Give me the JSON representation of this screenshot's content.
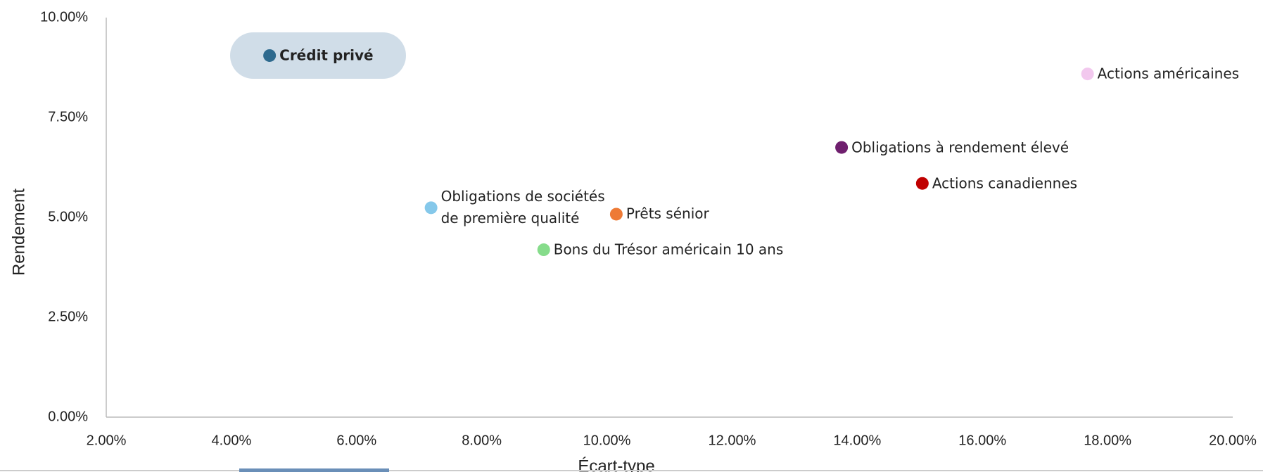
{
  "chart_data": {
    "type": "scatter",
    "x_label": "Écart-type",
    "y_label": "Rendement",
    "xlim": [
      2,
      20
    ],
    "ylim": [
      0,
      10
    ],
    "xticks": [
      {
        "value": 2,
        "label": "2.00%"
      },
      {
        "value": 4,
        "label": "4.00%"
      },
      {
        "value": 6,
        "label": "6.00%"
      },
      {
        "value": 8,
        "label": "8.00%"
      },
      {
        "value": 10,
        "label": "10.00%"
      },
      {
        "value": 12,
        "label": "12.00%"
      },
      {
        "value": 14,
        "label": "14.00%"
      },
      {
        "value": 16,
        "label": "16.00%"
      },
      {
        "value": 18,
        "label": "18.00%"
      },
      {
        "value": 20,
        "label": "20.00%"
      }
    ],
    "yticks": [
      {
        "value": 0,
        "label": "0.00%"
      },
      {
        "value": 2.5,
        "label": "2.50%"
      },
      {
        "value": 5,
        "label": "5.00%"
      },
      {
        "value": 7.5,
        "label": "7.50%"
      },
      {
        "value": 10,
        "label": "10.00%"
      }
    ],
    "grid": false,
    "series": [
      {
        "name": "Crédit privé",
        "color": "#2e6a8e",
        "x": 4.61,
        "y": 9.05,
        "highlighted": true
      },
      {
        "name": "Actions américaines",
        "color": "#f2c8ee",
        "x": 17.68,
        "y": 8.59
      },
      {
        "name": "Obligations à rendement élevé",
        "color": "#6f1f6e",
        "x": 13.75,
        "y": 6.75
      },
      {
        "name": "Actions canadiennes",
        "color": "#c00000",
        "x": 15.04,
        "y": 5.85
      },
      {
        "name": "Obligations de sociétés\nde première qualité",
        "color": "#85c8ea",
        "x": 7.19,
        "y": 5.24
      },
      {
        "name": "Prêts sénior",
        "color": "#ee7a35",
        "x": 10.15,
        "y": 5.08
      },
      {
        "name": "Bons du Trésor américain 10 ans",
        "color": "#86dc8b",
        "x": 8.99,
        "y": 4.19
      }
    ]
  }
}
